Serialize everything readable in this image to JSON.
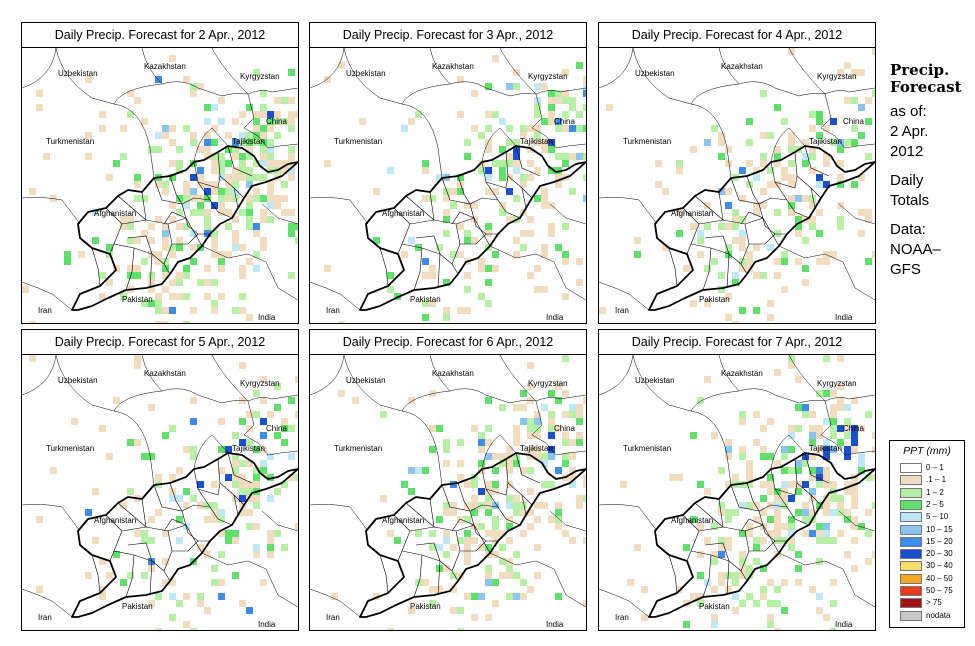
{
  "panels": [
    {
      "title": "Daily Precip. Forecast for  2 Apr., 2012",
      "seed": 11,
      "density": 0.55
    },
    {
      "title": "Daily Precip. Forecast for  3 Apr., 2012",
      "seed": 23,
      "density": 0.35
    },
    {
      "title": "Daily Precip. Forecast for  4 Apr., 2012",
      "seed": 37,
      "density": 0.3
    },
    {
      "title": "Daily Precip. Forecast for  5 Apr., 2012",
      "seed": 41,
      "density": 0.3
    },
    {
      "title": "Daily Precip. Forecast for  6 Apr., 2012",
      "seed": 53,
      "density": 0.4
    },
    {
      "title": "Daily Precip. Forecast for  7 Apr., 2012",
      "seed": 67,
      "density": 0.45
    }
  ],
  "country_labels": {
    "uzbekistan": "Uzbekistan",
    "kazakhstan": "Kazakhstan",
    "kyrgyzstan": "Kyrgyzstan",
    "china": "China",
    "turkmenistan": "Turkmenistan",
    "tajikistan": "Tajikistan",
    "afghanistan": "Afghanistan",
    "pakistan": "Pakistan",
    "iran": "Iran",
    "india": "India"
  },
  "sidebar": {
    "title_line1": "Precip.",
    "title_line2": "Forecast",
    "asof_line1": "as of:",
    "asof_line2": "2 Apr.",
    "asof_line3": "2012",
    "totals_line1": "Daily",
    "totals_line2": "Totals",
    "data_line1": "Data:",
    "data_line2": "NOAA–",
    "data_line3": "GFS"
  },
  "legend": {
    "title": "PPT (mm)",
    "items": [
      {
        "label": "0 – 1",
        "color": "#ffffff"
      },
      {
        "label": ".1 – 1",
        "color": "#f2dcc0"
      },
      {
        "label": "1 – 2",
        "color": "#b6f0a4"
      },
      {
        "label": "2 – 5",
        "color": "#5fe06a"
      },
      {
        "label": "5 – 10",
        "color": "#bfe8f7"
      },
      {
        "label": "10 – 15",
        "color": "#8ac4f0"
      },
      {
        "label": "15 – 20",
        "color": "#3f8ce8"
      },
      {
        "label": "20 – 30",
        "color": "#1a4fd0"
      },
      {
        "label": "30 – 40",
        "color": "#f5e06b"
      },
      {
        "label": "40 – 50",
        "color": "#f5a623"
      },
      {
        "label": "50 – 75",
        "color": "#e83a1c"
      },
      {
        "label": "> 75",
        "color": "#a01414"
      },
      {
        "label": "nodata",
        "color": "#c8c8c8"
      }
    ]
  }
}
